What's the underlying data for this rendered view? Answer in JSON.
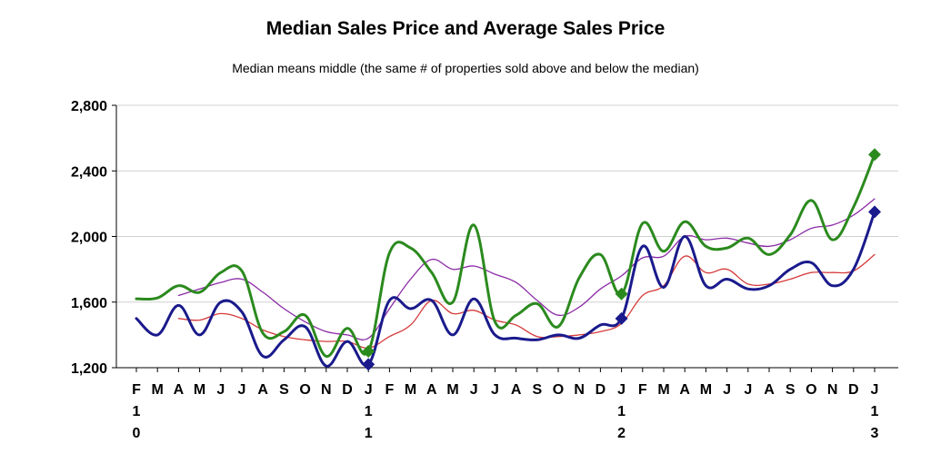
{
  "chart_data": {
    "type": "line",
    "title": "Median Sales Price and Average Sales Price",
    "subtitle": "Median means middle (the same # of properties sold above and below the median)",
    "xlabel": "",
    "ylabel": "",
    "ylim": [
      1200,
      2800
    ],
    "yticks": [
      1200,
      1600,
      2000,
      2400,
      2800
    ],
    "ytick_labels": [
      "1,200",
      "1,600",
      "2,000",
      "2,400",
      "2,800"
    ],
    "grid": true,
    "legend": "none",
    "x_month_labels": [
      "F",
      "M",
      "A",
      "M",
      "J",
      "J",
      "A",
      "S",
      "O",
      "N",
      "D",
      "J",
      "F",
      "M",
      "A",
      "M",
      "J",
      "J",
      "A",
      "S",
      "O",
      "N",
      "D",
      "J",
      "F",
      "M",
      "A",
      "M",
      "J",
      "J",
      "A",
      "S",
      "O",
      "N",
      "D",
      "J"
    ],
    "year_labels": [
      {
        "index": 0,
        "lines": [
          "1",
          "0"
        ]
      },
      {
        "index": 11,
        "lines": [
          "1",
          "1"
        ]
      },
      {
        "index": 23,
        "lines": [
          "1",
          "2"
        ]
      },
      {
        "index": 35,
        "lines": [
          "1",
          "3"
        ]
      }
    ],
    "series": [
      {
        "color": "#2b8a1e",
        "width": 3,
        "marker_indices": [
          11,
          23,
          35
        ],
        "values": [
          1620,
          1625,
          1700,
          1660,
          1780,
          1790,
          1410,
          1420,
          1520,
          1270,
          1440,
          1300,
          1900,
          1930,
          1780,
          1600,
          2070,
          1480,
          1520,
          1590,
          1450,
          1750,
          1890,
          1650,
          2080,
          1910,
          2090,
          1940,
          1930,
          1990,
          1890,
          2010,
          2220,
          1980,
          2180,
          2500
        ]
      },
      {
        "color": "#1a1a8c",
        "width": 3,
        "marker_indices": [
          11,
          23,
          35
        ],
        "values": [
          1500,
          1400,
          1580,
          1400,
          1600,
          1540,
          1270,
          1370,
          1450,
          1210,
          1360,
          1220,
          1610,
          1560,
          1610,
          1400,
          1620,
          1400,
          1380,
          1370,
          1400,
          1380,
          1460,
          1500,
          1940,
          1690,
          2000,
          1700,
          1740,
          1680,
          1700,
          1800,
          1840,
          1700,
          1800,
          2150
        ]
      },
      {
        "color": "#8b2aa6",
        "width": 1.3,
        "marker_indices": [],
        "values": [
          null,
          null,
          1640,
          1680,
          1720,
          1740,
          1660,
          1560,
          1480,
          1420,
          1400,
          1380,
          1560,
          1740,
          1860,
          1800,
          1820,
          1770,
          1720,
          1610,
          1520,
          1570,
          1680,
          1760,
          1870,
          1880,
          2000,
          1980,
          1990,
          1960,
          1940,
          1980,
          2050,
          2070,
          2130,
          2230
        ]
      },
      {
        "color": "#d63b3b",
        "width": 1.3,
        "marker_indices": [],
        "values": [
          null,
          null,
          1500,
          1490,
          1530,
          1500,
          1430,
          1390,
          1370,
          1360,
          1360,
          1320,
          1390,
          1460,
          1610,
          1530,
          1550,
          1490,
          1460,
          1390,
          1390,
          1400,
          1420,
          1470,
          1640,
          1700,
          1880,
          1780,
          1800,
          1710,
          1710,
          1740,
          1780,
          1780,
          1790,
          1890
        ]
      }
    ]
  }
}
